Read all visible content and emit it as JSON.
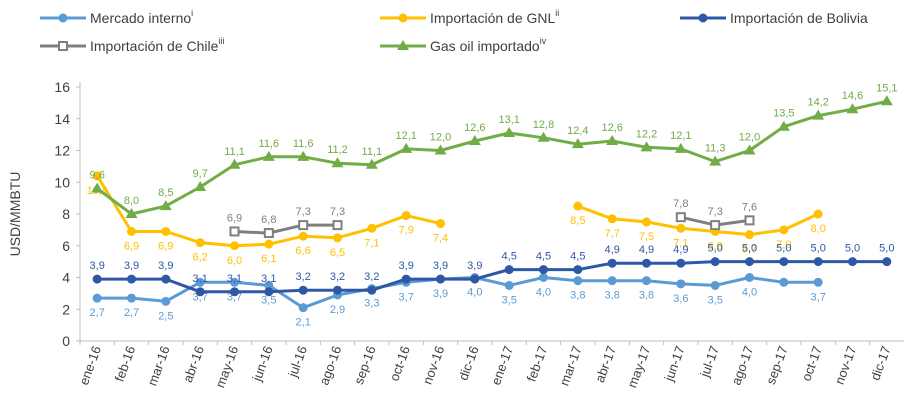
{
  "chart_data": {
    "type": "line",
    "ylabel": "USD/MMBTU",
    "categories": [
      "ene-16",
      "feb-16",
      "mar-16",
      "abr-16",
      "may-16",
      "jun-16",
      "jul-16",
      "ago-16",
      "sep-16",
      "oct-16",
      "nov-16",
      "dic-16",
      "ene-17",
      "feb-17",
      "mar-17",
      "abr-17",
      "may-17",
      "jun-17",
      "jul-17",
      "ago-17",
      "sep-17",
      "oct-17",
      "nov-17",
      "dic-17"
    ],
    "ylim": [
      0,
      16
    ],
    "yticks": [
      0,
      2,
      4,
      6,
      8,
      10,
      12,
      14,
      16
    ],
    "grid": false,
    "series": [
      {
        "name": "Mercado interno",
        "superscript": "i",
        "color": "#5b9bd5",
        "marker": "circle",
        "label_side": "below",
        "values": [
          2.7,
          2.7,
          2.5,
          3.7,
          3.7,
          3.5,
          2.1,
          2.9,
          3.3,
          3.7,
          3.9,
          4.0,
          3.5,
          4.0,
          3.8,
          3.8,
          3.8,
          3.6,
          3.5,
          4.0,
          3.7,
          3.7,
          null,
          null
        ],
        "value_labels": [
          "2,7",
          "2,7",
          "2,5",
          "3,7",
          "3,7",
          "3,5",
          "2,1",
          "2,9",
          "3,3",
          "3,7",
          "3,9",
          "4,0",
          "3,5",
          "4,0",
          "3,8",
          "3,8",
          "3,8",
          "3,6",
          "3,5",
          "4,0",
          null,
          "3,7",
          null,
          null
        ]
      },
      {
        "name": "Importación de GNL",
        "superscript": "ii",
        "color": "#ffc000",
        "marker": "circle",
        "label_side": "below",
        "values": [
          10.4,
          6.9,
          6.9,
          6.2,
          6.0,
          6.1,
          6.6,
          6.5,
          7.1,
          7.9,
          7.4,
          null,
          null,
          null,
          8.5,
          7.7,
          7.5,
          7.1,
          6.9,
          6.7,
          7.0,
          8.0,
          null,
          null
        ],
        "value_labels": [
          "10,4",
          "6,9",
          "6,9",
          "6,2",
          "6,0",
          "6,1",
          "6,6",
          "6,5",
          "7,1",
          "7,9",
          "7,4",
          null,
          null,
          null,
          "8,5",
          "7,7",
          "7,5",
          "7,1",
          "6,9",
          "6,7",
          "7,0",
          "8,0",
          null,
          null
        ]
      },
      {
        "name": "Importación de Bolivia",
        "color": "#2e58a6",
        "marker": "circle",
        "label_side": "above",
        "values": [
          3.9,
          3.9,
          3.9,
          3.1,
          3.1,
          3.1,
          3.2,
          3.2,
          3.2,
          3.9,
          3.9,
          3.9,
          4.5,
          4.5,
          4.5,
          4.9,
          4.9,
          4.9,
          5.0,
          5.0,
          5.0,
          5.0,
          5.0,
          5.0
        ],
        "value_labels": [
          "3,9",
          "3,9",
          "3,9",
          "3,1",
          "3,1",
          "3,1",
          "3,2",
          "3,2",
          "3,2",
          "3,9",
          "3,9",
          "3,9",
          "4,5",
          "4,5",
          "4,5",
          "4,9",
          "4,9",
          "4,9",
          "5,0",
          "5,0",
          "5,0",
          "5,0",
          "5,0",
          "5,0"
        ]
      },
      {
        "name": "Importación de Chile",
        "superscript": "iii",
        "color": "#7f7f7f",
        "marker": "square",
        "label_side": "above",
        "values": [
          null,
          null,
          null,
          null,
          6.9,
          6.8,
          7.3,
          7.3,
          null,
          null,
          null,
          null,
          null,
          null,
          null,
          null,
          null,
          7.8,
          7.3,
          7.6,
          null,
          null,
          null,
          null
        ],
        "value_labels": [
          null,
          null,
          null,
          null,
          "6,9",
          "6,8",
          "7,3",
          "7,3",
          null,
          null,
          null,
          null,
          null,
          null,
          null,
          null,
          null,
          "7,8",
          "7,3",
          "7,6",
          null,
          null,
          null,
          null
        ]
      },
      {
        "name": "Gas oil importado",
        "superscript": "iv",
        "color": "#70ad47",
        "marker": "triangle",
        "label_side": "above",
        "values": [
          9.6,
          8.0,
          8.5,
          9.7,
          11.1,
          11.6,
          11.6,
          11.2,
          11.1,
          12.1,
          12.0,
          12.6,
          13.1,
          12.8,
          12.4,
          12.6,
          12.2,
          12.1,
          11.3,
          12.0,
          13.5,
          14.2,
          14.6,
          15.1
        ],
        "value_labels": [
          "9,6",
          "8,0",
          "8,5",
          "9,7",
          "11,1",
          "11,6",
          "11,6",
          "11,2",
          "11,1",
          "12,1",
          "12,0",
          "12,6",
          "13,1",
          "12,8",
          "12,4",
          "12,6",
          "12,2",
          "12,1",
          "11,3",
          "12,0",
          "13,5",
          "14,2",
          "14,6",
          "15,1"
        ]
      }
    ]
  }
}
